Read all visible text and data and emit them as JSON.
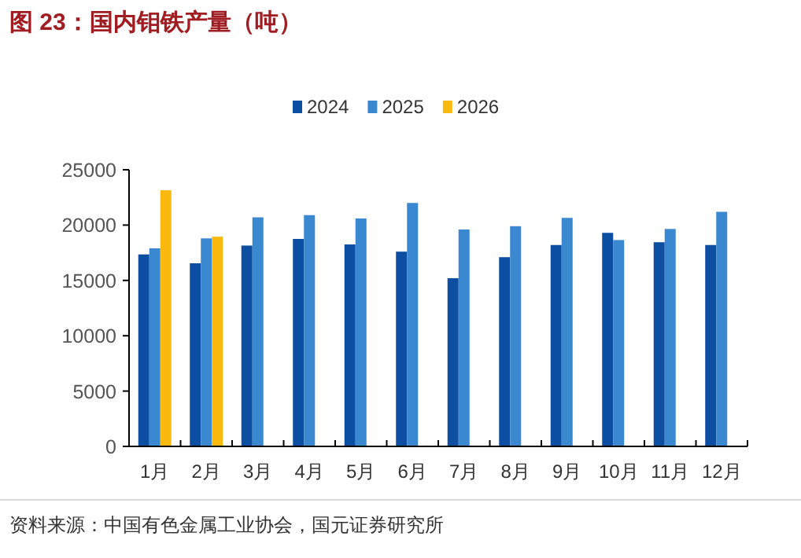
{
  "chart_data": {
    "type": "bar",
    "title": "图 23：国内钼铁产量（吨）",
    "categories": [
      "1月",
      "2月",
      "3月",
      "4月",
      "5月",
      "6月",
      "7月",
      "8月",
      "9月",
      "10月",
      "11月",
      "12月"
    ],
    "series": [
      {
        "name": "2024",
        "color": "#0b4ea2",
        "values": [
          17350,
          16550,
          18150,
          18750,
          18250,
          17600,
          15200,
          17100,
          18200,
          19300,
          18450,
          18200
        ]
      },
      {
        "name": "2025",
        "color": "#3a88d0",
        "values": [
          17900,
          18800,
          20700,
          20900,
          20600,
          22000,
          19600,
          19900,
          20650,
          18650,
          19650,
          21200
        ]
      },
      {
        "name": "2026",
        "color": "#f9b90f",
        "values": [
          23150,
          18950,
          null,
          null,
          null,
          null,
          null,
          null,
          null,
          null,
          null,
          null
        ]
      }
    ],
    "ylim": [
      0,
      25000
    ],
    "yticks": [
      0,
      5000,
      10000,
      15000,
      20000,
      25000
    ],
    "legend": "top",
    "grid": false,
    "annotations": [
      "资料来源：中国有色金属工业协会，国元证券研究所"
    ]
  }
}
